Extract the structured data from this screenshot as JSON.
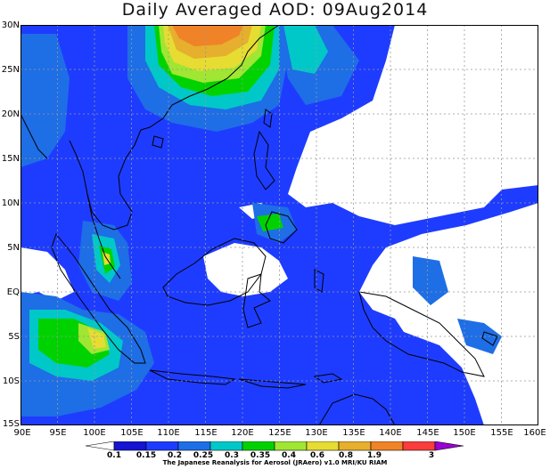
{
  "title": "Daily Averaged AOD: 09Aug2014",
  "lat_labels": [
    "30N",
    "25N",
    "20N",
    "15N",
    "10N",
    "5N",
    "EQ",
    "5S",
    "10S",
    "15S"
  ],
  "lon_labels": [
    "90E",
    "95E",
    "100E",
    "105E",
    "110E",
    "115E",
    "120E",
    "125E",
    "130E",
    "135E",
    "140E",
    "145E",
    "150E",
    "155E",
    "160E"
  ],
  "colorbar": {
    "levels": [
      "0.1",
      "0.15",
      "0.2",
      "0.25",
      "0.3",
      "0.35",
      "0.4",
      "0.6",
      "0.8",
      "1.9",
      "3"
    ],
    "colors": [
      "#1414d2",
      "#1e3cff",
      "#1e6ee6",
      "#00c8c8",
      "#00d200",
      "#a0e632",
      "#e6dc32",
      "#e6af2d",
      "#f08228",
      "#fa3c3c",
      "#9b00d2"
    ]
  },
  "credit": "The Japanese Reanalysis for Aerosol (JRAero) v1.0 MRI/KU RIAM",
  "map_extent": {
    "lon": [
      90,
      160
    ],
    "lat": [
      -15,
      30
    ]
  }
}
